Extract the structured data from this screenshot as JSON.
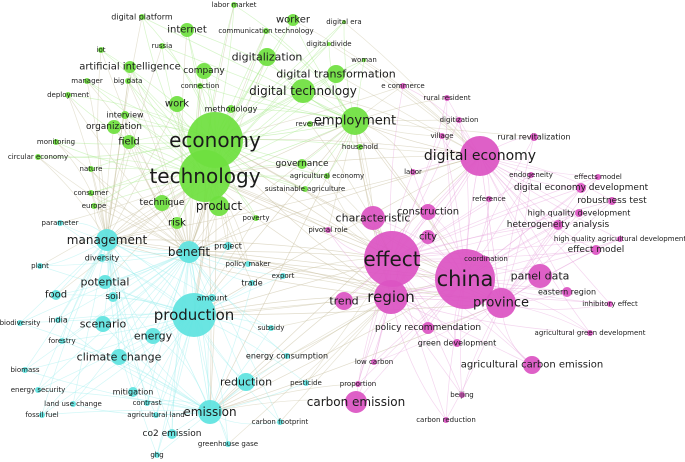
{
  "colors": {
    "green": "#6fe03f",
    "cyan": "#5fe3e0",
    "pink": "#dc54c3",
    "edge_green": "#a6e88a",
    "edge_cyan": "#9beeee",
    "edge_pink": "#e7a3db",
    "edge_mixed": "#c8c0a0"
  },
  "clusters": [
    "green",
    "cyan",
    "pink"
  ],
  "nodes": [
    {
      "id": "economy",
      "label": "economy",
      "cluster": "green",
      "weight": 10
    },
    {
      "id": "technology",
      "label": "technology",
      "cluster": "green",
      "weight": 9
    },
    {
      "id": "employment",
      "label": "employment",
      "cluster": "green",
      "weight": 6
    },
    {
      "id": "digital_technology",
      "label": "digital technology",
      "cluster": "green",
      "weight": 5
    },
    {
      "id": "digital_transformation",
      "label": "digital transformation",
      "cluster": "green",
      "weight": 4
    },
    {
      "id": "digitalization",
      "label": "digitalization",
      "cluster": "green",
      "weight": 4
    },
    {
      "id": "company",
      "label": "company",
      "cluster": "green",
      "weight": 3
    },
    {
      "id": "internet",
      "label": "internet",
      "cluster": "green",
      "weight": 3
    },
    {
      "id": "worker",
      "label": "worker",
      "cluster": "green",
      "weight": 3
    },
    {
      "id": "work",
      "label": "work",
      "cluster": "green",
      "weight": 3
    },
    {
      "id": "organization",
      "label": "organization",
      "cluster": "green",
      "weight": 3
    },
    {
      "id": "field",
      "label": "field",
      "cluster": "green",
      "weight": 3
    },
    {
      "id": "product",
      "label": "product",
      "cluster": "green",
      "weight": 4
    },
    {
      "id": "technique",
      "label": "technique",
      "cluster": "green",
      "weight": 3
    },
    {
      "id": "artificial_intelligence",
      "label": "artificial intelligence",
      "cluster": "green",
      "weight": 3
    },
    {
      "id": "digital_platform",
      "label": "digital platform",
      "cluster": "green",
      "weight": 2
    },
    {
      "id": "labor_market",
      "label": "labor market",
      "cluster": "green",
      "weight": 1
    },
    {
      "id": "communication_technology",
      "label": "communication technology",
      "cluster": "green",
      "weight": 1
    },
    {
      "id": "digital_era",
      "label": "digital era",
      "cluster": "green",
      "weight": 1
    },
    {
      "id": "digital_divide",
      "label": "digital divide",
      "cluster": "green",
      "weight": 1
    },
    {
      "id": "russia",
      "label": "russia",
      "cluster": "green",
      "weight": 1
    },
    {
      "id": "iot",
      "label": "iot",
      "cluster": "green",
      "weight": 1
    },
    {
      "id": "woman",
      "label": "woman",
      "cluster": "green",
      "weight": 1
    },
    {
      "id": "manager",
      "label": "manager",
      "cluster": "green",
      "weight": 1
    },
    {
      "id": "big_data",
      "label": "big data",
      "cluster": "green",
      "weight": 1
    },
    {
      "id": "connection",
      "label": "connection",
      "cluster": "green",
      "weight": 1
    },
    {
      "id": "deployment",
      "label": "deployment",
      "cluster": "green",
      "weight": 1
    },
    {
      "id": "interview",
      "label": "interview",
      "cluster": "green",
      "weight": 1
    },
    {
      "id": "methodology",
      "label": "methodology",
      "cluster": "green",
      "weight": 1
    },
    {
      "id": "revenue",
      "label": "revenue",
      "cluster": "green",
      "weight": 1
    },
    {
      "id": "monitoring",
      "label": "monitoring",
      "cluster": "green",
      "weight": 1
    },
    {
      "id": "circular_economy",
      "label": "circular economy",
      "cluster": "green",
      "weight": 1
    },
    {
      "id": "nature",
      "label": "nature",
      "cluster": "green",
      "weight": 1
    },
    {
      "id": "governance",
      "label": "governance",
      "cluster": "green",
      "weight": 2
    },
    {
      "id": "household",
      "label": "household",
      "cluster": "green",
      "weight": 1
    },
    {
      "id": "agricultural_economy",
      "label": "agricultural economy",
      "cluster": "green",
      "weight": 1
    },
    {
      "id": "sustainable_agriculture",
      "label": "sustainable agriculture",
      "cluster": "green",
      "weight": 1
    },
    {
      "id": "consumer",
      "label": "consumer",
      "cluster": "green",
      "weight": 1
    },
    {
      "id": "europe",
      "label": "europe",
      "cluster": "green",
      "weight": 1
    },
    {
      "id": "risk",
      "label": "risk",
      "cluster": "green",
      "weight": 2
    },
    {
      "id": "poverty",
      "label": "poverty",
      "cluster": "green",
      "weight": 1
    },
    {
      "id": "production",
      "label": "production",
      "cluster": "cyan",
      "weight": 8
    },
    {
      "id": "management",
      "label": "management",
      "cluster": "cyan",
      "weight": 4
    },
    {
      "id": "benefit",
      "label": "benefit",
      "cluster": "cyan",
      "weight": 4
    },
    {
      "id": "emission",
      "label": "emission",
      "cluster": "cyan",
      "weight": 4
    },
    {
      "id": "scenario",
      "label": "scenario",
      "cluster": "cyan",
      "weight": 3
    },
    {
      "id": "energy",
      "label": "energy",
      "cluster": "cyan",
      "weight": 3
    },
    {
      "id": "climate_change",
      "label": "climate change",
      "cluster": "cyan",
      "weight": 3
    },
    {
      "id": "reduction",
      "label": "reduction",
      "cluster": "cyan",
      "weight": 3
    },
    {
      "id": "potential",
      "label": "potential",
      "cluster": "cyan",
      "weight": 3
    },
    {
      "id": "food",
      "label": "food",
      "cluster": "cyan",
      "weight": 2
    },
    {
      "id": "soil",
      "label": "soil",
      "cluster": "cyan",
      "weight": 2
    },
    {
      "id": "diversity",
      "label": "diversity",
      "cluster": "cyan",
      "weight": 1
    },
    {
      "id": "plant",
      "label": "plant",
      "cluster": "cyan",
      "weight": 1
    },
    {
      "id": "parameter",
      "label": "parameter",
      "cluster": "cyan",
      "weight": 1
    },
    {
      "id": "project",
      "label": "project",
      "cluster": "cyan",
      "weight": 1
    },
    {
      "id": "policy_maker",
      "label": "policy maker",
      "cluster": "cyan",
      "weight": 1
    },
    {
      "id": "export",
      "label": "export",
      "cluster": "cyan",
      "weight": 1
    },
    {
      "id": "trade",
      "label": "trade",
      "cluster": "cyan",
      "weight": 1
    },
    {
      "id": "amount",
      "label": "amount",
      "cluster": "cyan",
      "weight": 1
    },
    {
      "id": "subsidy",
      "label": "subsidy",
      "cluster": "cyan",
      "weight": 1
    },
    {
      "id": "india",
      "label": "india",
      "cluster": "cyan",
      "weight": 1
    },
    {
      "id": "biodiversity",
      "label": "biodiversity",
      "cluster": "cyan",
      "weight": 1
    },
    {
      "id": "forestry",
      "label": "forestry",
      "cluster": "cyan",
      "weight": 1
    },
    {
      "id": "biomass",
      "label": "biomass",
      "cluster": "cyan",
      "weight": 1
    },
    {
      "id": "energy_consumption",
      "label": "energy consumption",
      "cluster": "cyan",
      "weight": 1
    },
    {
      "id": "mitigation",
      "label": "mitigation",
      "cluster": "cyan",
      "weight": 2
    },
    {
      "id": "energy_security",
      "label": "energy security",
      "cluster": "cyan",
      "weight": 1
    },
    {
      "id": "land_use_change",
      "label": "land use change",
      "cluster": "cyan",
      "weight": 1
    },
    {
      "id": "contrast",
      "label": "contrast",
      "cluster": "cyan",
      "weight": 1
    },
    {
      "id": "fossil_fuel",
      "label": "fossil fuel",
      "cluster": "cyan",
      "weight": 1
    },
    {
      "id": "agricultural_land",
      "label": "agricultural land",
      "cluster": "cyan",
      "weight": 1
    },
    {
      "id": "pesticide",
      "label": "pesticide",
      "cluster": "cyan",
      "weight": 1
    },
    {
      "id": "carbon_footprint",
      "label": "carbon footprint",
      "cluster": "cyan",
      "weight": 1
    },
    {
      "id": "co2_emission",
      "label": "co2 emission",
      "cluster": "cyan",
      "weight": 2
    },
    {
      "id": "greenhouse_gase",
      "label": "greenhouse gase",
      "cluster": "cyan",
      "weight": 1
    },
    {
      "id": "ghg",
      "label": "ghg",
      "cluster": "cyan",
      "weight": 1
    },
    {
      "id": "effect",
      "label": "effect",
      "cluster": "pink",
      "weight": 9
    },
    {
      "id": "china",
      "label": "china",
      "cluster": "pink",
      "weight": 9
    },
    {
      "id": "region",
      "label": "region",
      "cluster": "pink",
      "weight": 6
    },
    {
      "id": "province",
      "label": "province",
      "cluster": "pink",
      "weight": 5
    },
    {
      "id": "digital_economy",
      "label": "digital economy",
      "cluster": "pink",
      "weight": 6
    },
    {
      "id": "characteristic",
      "label": "characteristic",
      "cluster": "pink",
      "weight": 4
    },
    {
      "id": "panel_data",
      "label": "panel data",
      "cluster": "pink",
      "weight": 4
    },
    {
      "id": "trend",
      "label": "trend",
      "cluster": "pink",
      "weight": 3
    },
    {
      "id": "carbon_emission",
      "label": "carbon emission",
      "cluster": "pink",
      "weight": 4
    },
    {
      "id": "construction",
      "label": "construction",
      "cluster": "pink",
      "weight": 3
    },
    {
      "id": "city",
      "label": "city",
      "cluster": "pink",
      "weight": 3
    },
    {
      "id": "agricultural_carbon_emission",
      "label": "agricultural carbon emission",
      "cluster": "pink",
      "weight": 3
    },
    {
      "id": "policy_recommendation",
      "label": "policy recommendation",
      "cluster": "pink",
      "weight": 2
    },
    {
      "id": "e_commerce",
      "label": "e commerce",
      "cluster": "pink",
      "weight": 1
    },
    {
      "id": "rural_resident",
      "label": "rural resident",
      "cluster": "pink",
      "weight": 1
    },
    {
      "id": "digitization",
      "label": "digitization",
      "cluster": "pink",
      "weight": 1
    },
    {
      "id": "village",
      "label": "village",
      "cluster": "pink",
      "weight": 1
    },
    {
      "id": "rural_revitalization",
      "label": "rural revitalization",
      "cluster": "pink",
      "weight": 2
    },
    {
      "id": "labor",
      "label": "labor",
      "cluster": "pink",
      "weight": 1
    },
    {
      "id": "endogeneity",
      "label": "endogeneity",
      "cluster": "pink",
      "weight": 1
    },
    {
      "id": "effects_model",
      "label": "effects model",
      "cluster": "pink",
      "weight": 1
    },
    {
      "id": "digital_economy_development",
      "label": "digital economy development",
      "cluster": "pink",
      "weight": 2
    },
    {
      "id": "robustness_test",
      "label": "robustness test",
      "cluster": "pink",
      "weight": 2
    },
    {
      "id": "reference",
      "label": "reference",
      "cluster": "pink",
      "weight": 1
    },
    {
      "id": "high_quality_development",
      "label": "high quality development",
      "cluster": "pink",
      "weight": 2
    },
    {
      "id": "heterogeneity_analysis",
      "label": "heterogeneity analysis",
      "cluster": "pink",
      "weight": 2
    },
    {
      "id": "pivotal_role",
      "label": "pivotal role",
      "cluster": "pink",
      "weight": 1
    },
    {
      "id": "high_quality_agricultural_development",
      "label": "high quality agricultural development",
      "cluster": "pink",
      "weight": 1
    },
    {
      "id": "effect_model",
      "label": "effect model",
      "cluster": "pink",
      "weight": 2
    },
    {
      "id": "coordination",
      "label": "coordination",
      "cluster": "pink",
      "weight": 1
    },
    {
      "id": "eastern_region",
      "label": "eastern region",
      "cluster": "pink",
      "weight": 2
    },
    {
      "id": "inhibitory_effect",
      "label": "inhibitory effect",
      "cluster": "pink",
      "weight": 1
    },
    {
      "id": "green_development",
      "label": "green development",
      "cluster": "pink",
      "weight": 1
    },
    {
      "id": "agricultural_green_development",
      "label": "agricultural green development",
      "cluster": "pink",
      "weight": 1
    },
    {
      "id": "low_carbon",
      "label": "low carbon",
      "cluster": "pink",
      "weight": 1
    },
    {
      "id": "proportion",
      "label": "proportion",
      "cluster": "pink",
      "weight": 1
    },
    {
      "id": "beijing",
      "label": "beijing",
      "cluster": "pink",
      "weight": 1
    },
    {
      "id": "carbon_reduction",
      "label": "carbon reduction",
      "cluster": "pink",
      "weight": 1
    }
  ]
}
